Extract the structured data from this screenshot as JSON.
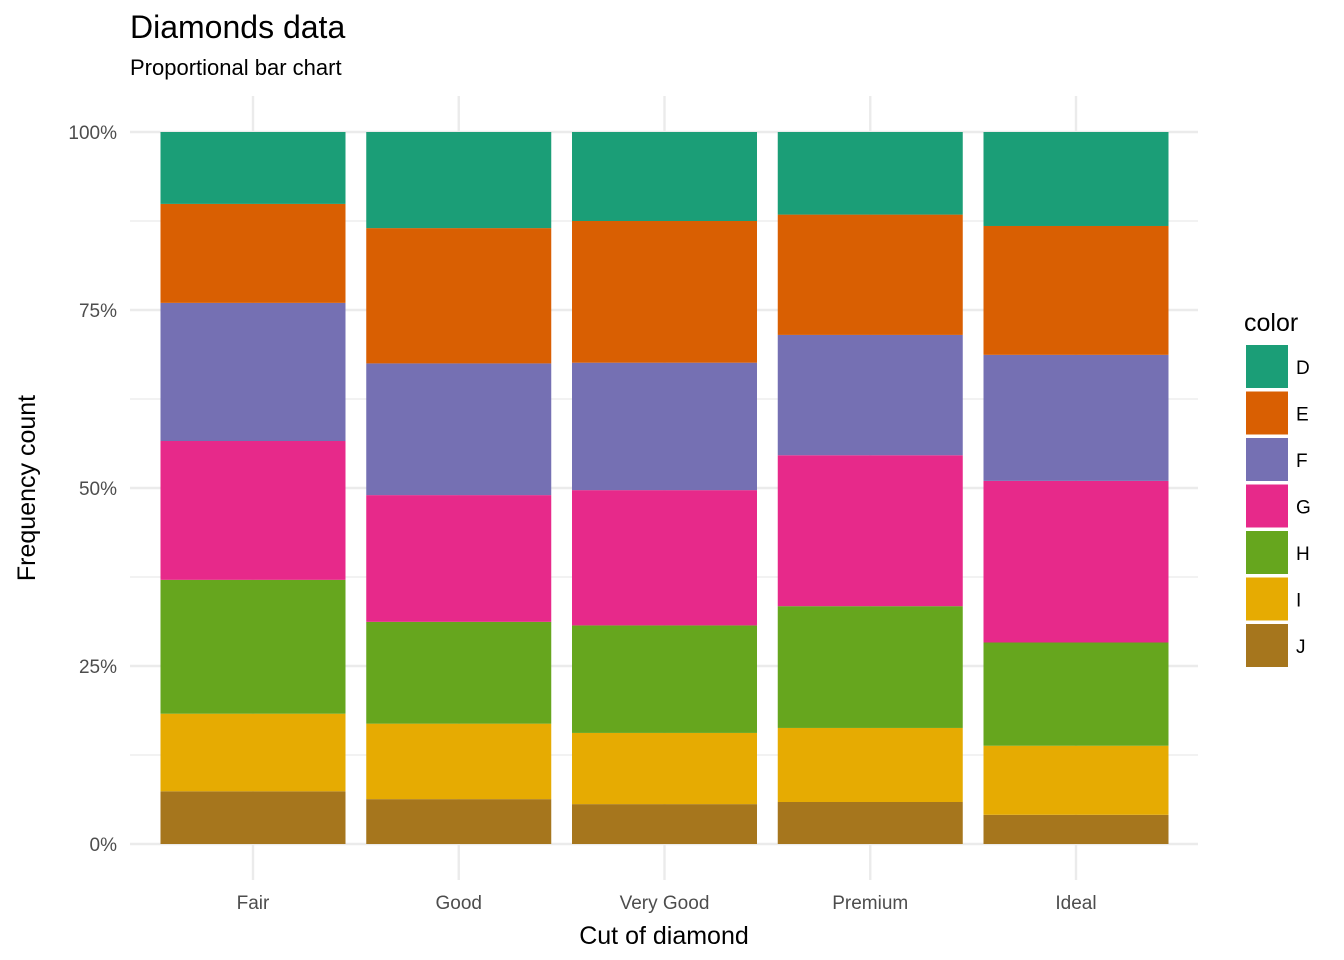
{
  "chart_data": {
    "type": "bar",
    "stacked": true,
    "proportional": true,
    "title": "Diamonds data",
    "subtitle": "Proportional bar chart",
    "xlabel": "Cut of diamond",
    "ylabel": "Frequency count",
    "ylim": [
      0,
      1
    ],
    "yticks": [
      0,
      0.25,
      0.5,
      0.75,
      1.0
    ],
    "ytick_labels": [
      "0%",
      "25%",
      "50%",
      "75%",
      "100%"
    ],
    "grid": true,
    "legend_title": "color",
    "legend_position": "right",
    "categories": [
      "Fair",
      "Good",
      "Very Good",
      "Premium",
      "Ideal"
    ],
    "series": [
      {
        "name": "D",
        "color": "#1B9E77",
        "values": [
          0.101,
          0.135,
          0.125,
          0.116,
          0.132
        ]
      },
      {
        "name": "E",
        "color": "#D95F02",
        "values": [
          0.139,
          0.19,
          0.199,
          0.169,
          0.181
        ]
      },
      {
        "name": "F",
        "color": "#7570B3",
        "values": [
          0.194,
          0.185,
          0.179,
          0.169,
          0.177
        ]
      },
      {
        "name": "G",
        "color": "#E7298A",
        "values": [
          0.195,
          0.178,
          0.19,
          0.212,
          0.227
        ]
      },
      {
        "name": "H",
        "color": "#66A61E",
        "values": [
          0.188,
          0.143,
          0.151,
          0.171,
          0.145
        ]
      },
      {
        "name": "I",
        "color": "#E6AB02",
        "values": [
          0.109,
          0.106,
          0.1,
          0.104,
          0.097
        ]
      },
      {
        "name": "J",
        "color": "#A6761D",
        "values": [
          0.074,
          0.063,
          0.056,
          0.059,
          0.041
        ]
      }
    ]
  }
}
